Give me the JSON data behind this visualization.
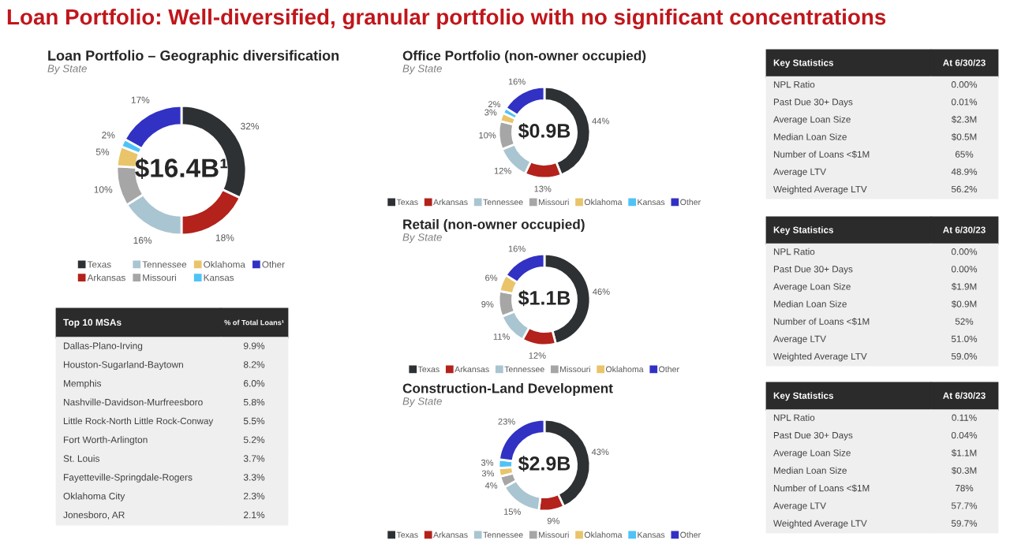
{
  "chart_data": [
    {
      "type": "other",
      "title": "Loan Portfolio: Well-diversified, granular portfolio with no significant concentrations"
    },
    {
      "type": "donut",
      "title": "Loan Portfolio – Geographic diversification",
      "subtitle": "By State",
      "annotations": [
        "$16.4B¹"
      ],
      "legend": "bottom",
      "categories": [
        "Texas",
        "Arkansas",
        "Tennessee",
        "Missouri",
        "Oklahoma",
        "Kansas",
        "Other"
      ],
      "values": [
        32,
        18,
        16,
        10,
        5,
        2,
        17
      ],
      "value_labels": [
        "32%",
        "18%",
        "16%",
        "10%",
        "5%",
        "2%",
        "17%"
      ],
      "colors": [
        "#2e3134",
        "#b3221b",
        "#a9c5d1",
        "#a6a6a6",
        "#e9c46a",
        "#4fc3f7",
        "#3131c4"
      ]
    },
    {
      "type": "other",
      "categories": [
        "Top 10 MSAs",
        "% of Total Loans¹"
      ],
      "y_categories": [
        "Dallas-Plano-Irving",
        "Houston-Sugarland-Baytown",
        "Memphis",
        "Nashville-Davidson-Murfreesboro",
        "Little Rock-North Little Rock-Conway",
        "Fort Worth-Arlington",
        "St. Louis",
        "Fayetteville-Springdale-Rogers",
        "Oklahoma City",
        "Jonesboro, AR"
      ],
      "cell_labels": [
        [
          "9.9%"
        ],
        [
          "8.2%"
        ],
        [
          "6.0%"
        ],
        [
          "5.8%"
        ],
        [
          "5.5%"
        ],
        [
          "5.2%"
        ],
        [
          "3.7%"
        ],
        [
          "3.3%"
        ],
        [
          "2.3%"
        ],
        [
          "2.1%"
        ]
      ]
    },
    {
      "type": "donut",
      "title": "Office Portfolio (non-owner occupied)",
      "subtitle": "By State",
      "annotations": [
        "$0.9B"
      ],
      "legend": "bottom",
      "categories": [
        "Texas",
        "Arkansas",
        "Tennessee",
        "Missouri",
        "Oklahoma",
        "Kansas",
        "Other"
      ],
      "values": [
        44,
        13,
        12,
        10,
        3,
        2,
        16
      ],
      "value_labels": [
        "44%",
        "13%",
        "12%",
        "10%",
        "3%",
        "2%",
        "16%"
      ],
      "colors": [
        "#2e3134",
        "#b3221b",
        "#a9c5d1",
        "#a6a6a6",
        "#e9c46a",
        "#4fc3f7",
        "#3131c4"
      ]
    },
    {
      "type": "other",
      "categories": [
        "Key Statistics",
        "At 6/30/23"
      ],
      "y_categories": [
        "NPL Ratio",
        "Past Due 30+ Days",
        "Average Loan Size",
        "Median Loan Size",
        "Number of Loans <$1M",
        "Average LTV",
        "Weighted Average LTV"
      ],
      "cell_labels": [
        [
          "0.00%"
        ],
        [
          "0.01%"
        ],
        [
          "$2.3M"
        ],
        [
          "$0.5M"
        ],
        [
          "65%"
        ],
        [
          "48.9%"
        ],
        [
          "56.2%"
        ]
      ]
    },
    {
      "type": "donut",
      "title": "Retail (non-owner occupied)",
      "subtitle": "By State",
      "annotations": [
        "$1.1B"
      ],
      "legend": "bottom",
      "categories": [
        "Texas",
        "Arkansas",
        "Tennessee",
        "Missouri",
        "Oklahoma",
        "Other"
      ],
      "values": [
        46,
        12,
        11,
        9,
        6,
        16
      ],
      "value_labels": [
        "46%",
        "12%",
        "11%",
        "9%",
        "6%",
        "16%"
      ],
      "colors": [
        "#2e3134",
        "#b3221b",
        "#a9c5d1",
        "#a6a6a6",
        "#e9c46a",
        "#3131c4"
      ]
    },
    {
      "type": "other",
      "categories": [
        "Key Statistics",
        "At 6/30/23"
      ],
      "y_categories": [
        "NPL Ratio",
        "Past Due 30+ Days",
        "Average Loan Size",
        "Median Loan Size",
        "Number of Loans <$1M",
        "Average LTV",
        "Weighted Average LTV"
      ],
      "cell_labels": [
        [
          "0.00%"
        ],
        [
          "0.00%"
        ],
        [
          "$1.9M"
        ],
        [
          "$0.9M"
        ],
        [
          "52%"
        ],
        [
          "51.0%"
        ],
        [
          "59.0%"
        ]
      ]
    },
    {
      "type": "donut",
      "title": "Construction-Land Development",
      "subtitle": "By State",
      "annotations": [
        "$2.9B"
      ],
      "legend": "bottom",
      "categories": [
        "Texas",
        "Arkansas",
        "Tennessee",
        "Missouri",
        "Oklahoma",
        "Kansas",
        "Other"
      ],
      "values": [
        43,
        9,
        15,
        4,
        3,
        3,
        23
      ],
      "value_labels": [
        "43%",
        "9%",
        "15%",
        "4%",
        "3%",
        "3%",
        "23%"
      ],
      "colors": [
        "#2e3134",
        "#b3221b",
        "#a9c5d1",
        "#a6a6a6",
        "#e9c46a",
        "#4fc3f7",
        "#3131c4"
      ]
    },
    {
      "type": "other",
      "categories": [
        "Key Statistics",
        "At 6/30/23"
      ],
      "y_categories": [
        "NPL Ratio",
        "Past Due 30+ Days",
        "Average Loan Size",
        "Median Loan Size",
        "Number of Loans <$1M",
        "Average LTV",
        "Weighted Average LTV"
      ],
      "cell_labels": [
        [
          "0.11%"
        ],
        [
          "0.04%"
        ],
        [
          "$1.1M"
        ],
        [
          "$0.3M"
        ],
        [
          "78%"
        ],
        [
          "57.7%"
        ],
        [
          "59.7%"
        ]
      ]
    }
  ]
}
